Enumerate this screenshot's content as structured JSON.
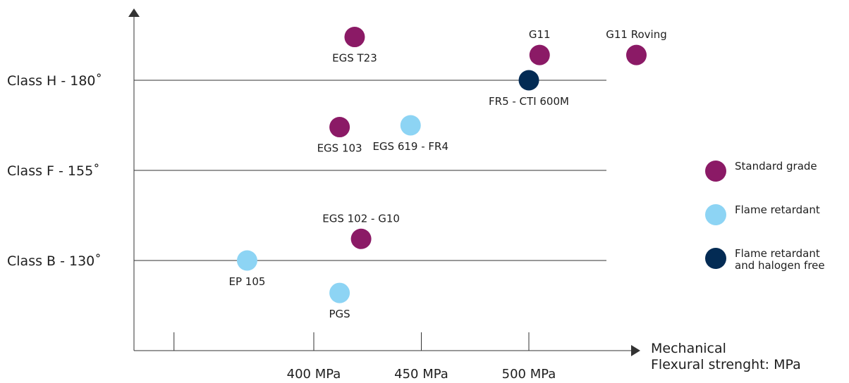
{
  "chart_data": {
    "type": "scatter",
    "title": "",
    "xlabel": "Mechanical\nFlexural strenght: MPa",
    "ylabel": "",
    "x_ticks": [
      {
        "value": 400,
        "label": "400 MPa"
      },
      {
        "value": 450,
        "label": "450 MPa"
      },
      {
        "value": 500,
        "label": "500 MPa"
      }
    ],
    "x_gridlines_minor": [
      335
    ],
    "xlim": [
      335,
      570
    ],
    "y_ticks": [
      {
        "value": 130,
        "label": "Class B - 130˚"
      },
      {
        "value": 155,
        "label": "Class F - 155˚"
      },
      {
        "value": 180,
        "label": "Class H - 180˚"
      }
    ],
    "ylim": [
      115,
      199
    ],
    "grid": "horizontal at class levels",
    "legend_position": "right",
    "series": [
      {
        "name": "Standard grade",
        "color": "#8b1a66",
        "points": [
          {
            "label": "EGS T23",
            "x": 419,
            "y": 192
          },
          {
            "label": "G11",
            "x": 505,
            "y": 187
          },
          {
            "label": "G11 Roving",
            "x": 550,
            "y": 187
          },
          {
            "label": "EGS 103",
            "x": 412,
            "y": 167
          },
          {
            "label": "EGS 102 - G10",
            "x": 422,
            "y": 136
          }
        ]
      },
      {
        "name": "Flame retardant",
        "color": "#8dd4f4",
        "points": [
          {
            "label": "EGS 619 - FR4",
            "x": 445,
            "y": 167.5
          },
          {
            "label": "EP 105",
            "x": 369,
            "y": 130
          },
          {
            "label": "PGS",
            "x": 412,
            "y": 121
          }
        ]
      },
      {
        "name": "Flame retardant\nand halogen free",
        "color": "#032b54",
        "points": [
          {
            "label": "FR5 - CTI 600M",
            "x": 500,
            "y": 180
          }
        ]
      }
    ]
  }
}
